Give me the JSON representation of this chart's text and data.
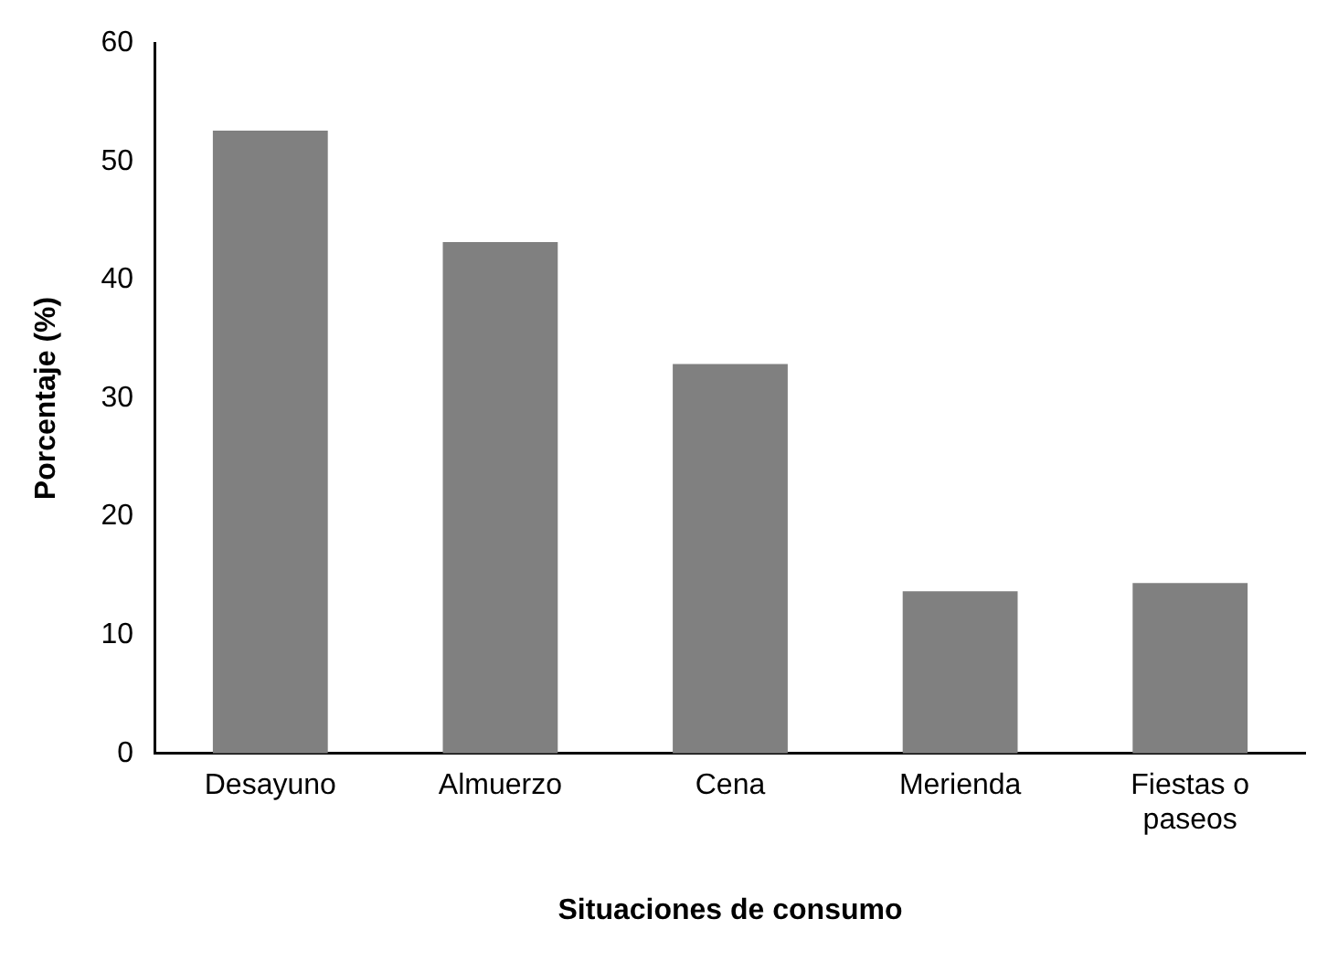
{
  "chart_data": {
    "type": "bar",
    "xlabel": "Situaciones de consumo",
    "ylabel": "Porcentaje (%)",
    "categories": [
      "Desayuno",
      "Almuerzo",
      "Cena",
      "Merienda",
      "Fiestas o paseos"
    ],
    "values": [
      52.6,
      43.2,
      32.9,
      13.7,
      14.4
    ],
    "color": "#808080",
    "ylim": [
      0,
      60
    ],
    "yticks": [
      0,
      10,
      20,
      30,
      40,
      50,
      60
    ],
    "grid": false,
    "legend": false
  }
}
